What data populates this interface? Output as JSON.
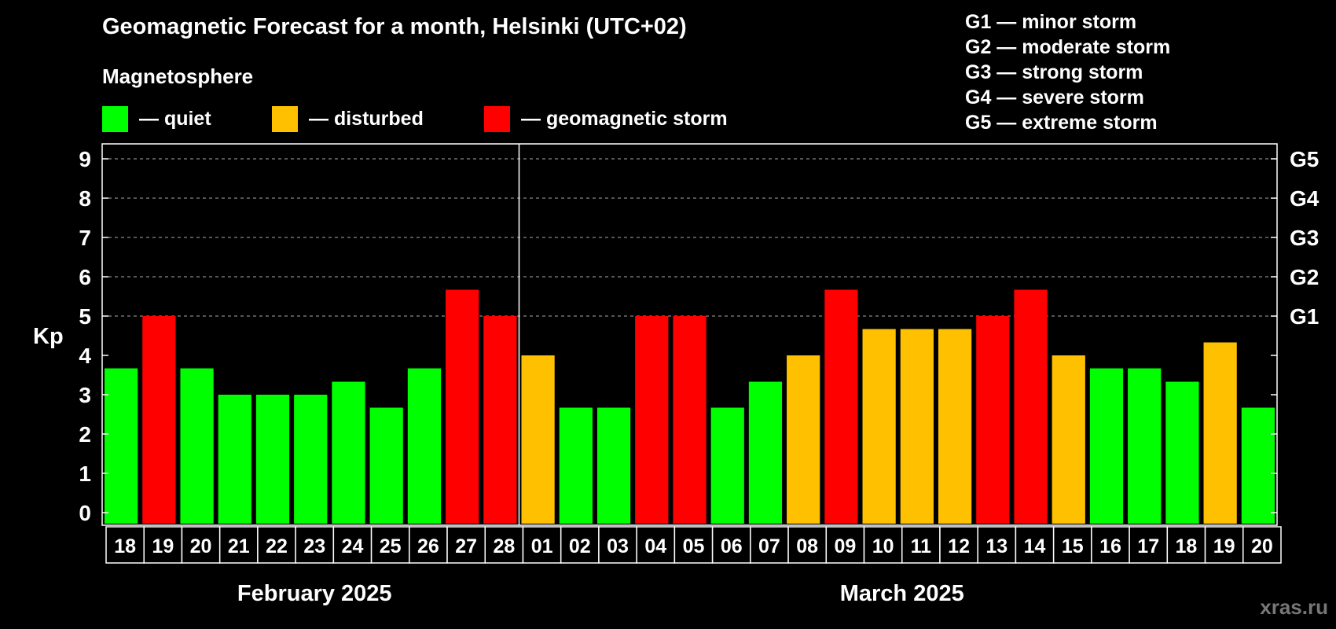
{
  "title": "Geomagnetic Forecast for a month, Helsinki (UTC+02)",
  "subtitle": "Magnetosphere",
  "legend": [
    {
      "label": "— quiet",
      "color": "#00ff00"
    },
    {
      "label": "— disturbed",
      "color": "#ffc000"
    },
    {
      "label": "— geomagnetic storm",
      "color": "#ff0000"
    }
  ],
  "g_scale": [
    {
      "text": "G1 — minor storm"
    },
    {
      "text": "G2 — moderate storm"
    },
    {
      "text": "G3 — strong storm"
    },
    {
      "text": "G4 — severe storm"
    },
    {
      "text": "G5 — extreme storm"
    }
  ],
  "watermark": "xras.ru",
  "chart_data": {
    "type": "bar",
    "ylabel": "Kp",
    "ylim": [
      0,
      9
    ],
    "yticks": [
      "0",
      "1",
      "2",
      "3",
      "4",
      "5",
      "6",
      "7",
      "8",
      "9"
    ],
    "right_ticks": [
      {
        "value": 5,
        "label": "G1"
      },
      {
        "value": 6,
        "label": "G2"
      },
      {
        "value": 7,
        "label": "G3"
      },
      {
        "value": 8,
        "label": "G4"
      },
      {
        "value": 9,
        "label": "G5"
      }
    ],
    "grid": true,
    "months": [
      "February 2025",
      "March 2025"
    ],
    "categories": [
      "18",
      "19",
      "20",
      "21",
      "22",
      "23",
      "24",
      "25",
      "26",
      "27",
      "28",
      "01",
      "02",
      "03",
      "04",
      "05",
      "06",
      "07",
      "08",
      "09",
      "10",
      "11",
      "12",
      "13",
      "14",
      "15",
      "16",
      "17",
      "18",
      "19",
      "20"
    ],
    "month_of_category": [
      0,
      0,
      0,
      0,
      0,
      0,
      0,
      0,
      0,
      0,
      0,
      1,
      1,
      1,
      1,
      1,
      1,
      1,
      1,
      1,
      1,
      1,
      1,
      1,
      1,
      1,
      1,
      1,
      1,
      1,
      1
    ],
    "values": [
      3.67,
      5.0,
      3.67,
      3.0,
      3.0,
      3.0,
      3.33,
      2.67,
      3.67,
      5.67,
      5.0,
      4.0,
      2.67,
      2.67,
      5.0,
      5.0,
      2.67,
      3.33,
      4.0,
      5.67,
      4.67,
      4.67,
      4.67,
      5.0,
      5.67,
      4.0,
      3.67,
      3.67,
      3.33,
      4.33,
      2.67
    ],
    "status": [
      "quiet",
      "storm",
      "quiet",
      "quiet",
      "quiet",
      "quiet",
      "quiet",
      "quiet",
      "quiet",
      "storm",
      "storm",
      "disturbed",
      "quiet",
      "quiet",
      "storm",
      "storm",
      "quiet",
      "quiet",
      "disturbed",
      "storm",
      "disturbed",
      "disturbed",
      "disturbed",
      "storm",
      "storm",
      "disturbed",
      "quiet",
      "quiet",
      "quiet",
      "disturbed",
      "quiet"
    ],
    "status_colors": {
      "quiet": "#00ff00",
      "disturbed": "#ffc000",
      "storm": "#ff0000"
    }
  }
}
